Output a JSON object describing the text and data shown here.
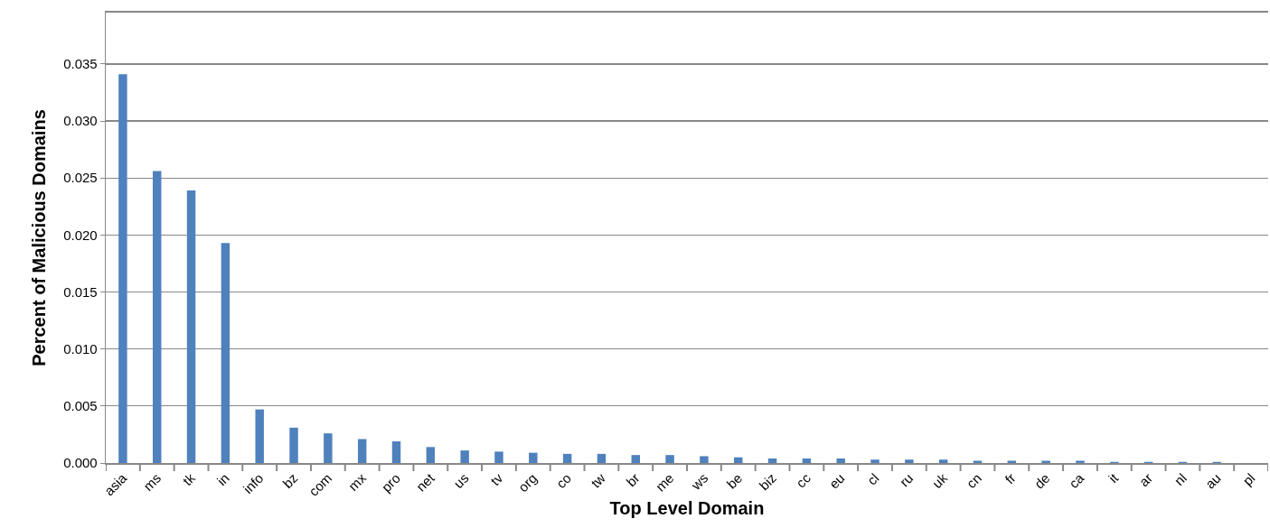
{
  "chart_data": {
    "type": "bar",
    "xlabel": "Top Level Domain",
    "ylabel": "Percent of Malicious Domains",
    "categories": [
      "asia",
      "ms",
      "tk",
      "in",
      "info",
      "bz",
      "com",
      "mx",
      "pro",
      "net",
      "us",
      "tv",
      "org",
      "co",
      "tw",
      "br",
      "me",
      "ws",
      "be",
      "biz",
      "cc",
      "eu",
      "cl",
      "ru",
      "uk",
      "cn",
      "fr",
      "de",
      "ca",
      "it",
      "ar",
      "nl",
      "au",
      "pl"
    ],
    "values": [
      0.0341,
      0.0256,
      0.0239,
      0.0193,
      0.0047,
      0.0031,
      0.0026,
      0.0021,
      0.0019,
      0.0014,
      0.0011,
      0.001,
      0.0009,
      0.0008,
      0.0008,
      0.0007,
      0.0007,
      0.0006,
      0.0005,
      0.0004,
      0.0004,
      0.0004,
      0.0003,
      0.0003,
      0.0003,
      0.0002,
      0.0002,
      0.0002,
      0.0002,
      0.0001,
      0.0001,
      0.0001,
      0.0001,
      0
    ],
    "color": "#4f81bd",
    "ylim": [
      0,
      0.0395
    ],
    "yticks": [
      {
        "value": 0,
        "label": "0.000"
      },
      {
        "value": 0.005,
        "label": "0.005"
      },
      {
        "value": 0.01,
        "label": "0.010"
      },
      {
        "value": 0.015,
        "label": "0.015"
      },
      {
        "value": 0.02,
        "label": "0.020"
      },
      {
        "value": 0.025,
        "label": "0.025"
      },
      {
        "value": 0.03,
        "label": "0.030"
      },
      {
        "value": 0.035,
        "label": "0.035"
      }
    ],
    "grid": "y"
  }
}
